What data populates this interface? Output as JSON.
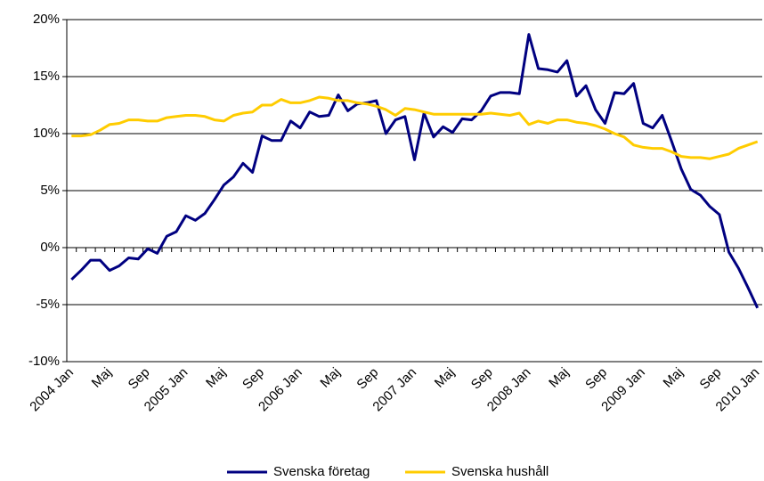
{
  "chart_data": {
    "type": "line",
    "categories": [
      "2004 Jan",
      null,
      null,
      null,
      "Maj",
      null,
      null,
      null,
      "Sep",
      null,
      null,
      null,
      "2005 Jan",
      null,
      null,
      null,
      "Maj",
      null,
      null,
      null,
      "Sep",
      null,
      null,
      null,
      "2006 Jan",
      null,
      null,
      null,
      "Maj",
      null,
      null,
      null,
      "Sep",
      null,
      null,
      null,
      "2007 Jan",
      null,
      null,
      null,
      "Maj",
      null,
      null,
      null,
      "Sep",
      null,
      null,
      null,
      "2008 Jan",
      null,
      null,
      null,
      "Maj",
      null,
      null,
      null,
      "Sep",
      null,
      null,
      null,
      "2009 Jan",
      null,
      null,
      null,
      "Maj",
      null,
      null,
      null,
      "Sep",
      null,
      null,
      null,
      "2010 Jan"
    ],
    "series": [
      {
        "name": "Svenska företag",
        "color": "#000080",
        "values": [
          -2.8,
          -2.0,
          -1.1,
          -1.1,
          -2.0,
          -1.6,
          -0.9,
          -1.0,
          -0.1,
          -0.5,
          1.0,
          1.4,
          2.8,
          2.4,
          3.0,
          4.2,
          5.5,
          6.2,
          7.4,
          6.6,
          9.8,
          9.4,
          9.4,
          11.1,
          10.5,
          11.9,
          11.5,
          11.6,
          13.4,
          12.0,
          12.6,
          12.7,
          12.9,
          10.0,
          11.2,
          11.5,
          7.7,
          11.8,
          9.7,
          10.6,
          10.1,
          11.3,
          11.2,
          12.0,
          13.3,
          13.6,
          13.6,
          13.5,
          18.7,
          15.7,
          15.6,
          15.4,
          16.4,
          13.3,
          14.2,
          12.1,
          10.9,
          13.6,
          13.5,
          14.4,
          10.9,
          10.5,
          11.6,
          9.3,
          6.9,
          5.1,
          4.6,
          3.6,
          2.9,
          -0.4,
          -1.8,
          -3.5,
          -5.3
        ]
      },
      {
        "name": "Svenska hushåll",
        "color": "#ffcc00",
        "values": [
          9.8,
          9.8,
          9.9,
          10.3,
          10.8,
          10.9,
          11.2,
          11.2,
          11.1,
          11.1,
          11.4,
          11.5,
          11.6,
          11.6,
          11.5,
          11.2,
          11.1,
          11.6,
          11.8,
          11.9,
          12.5,
          12.5,
          13.0,
          12.7,
          12.7,
          12.9,
          13.2,
          13.1,
          12.9,
          12.9,
          12.7,
          12.6,
          12.4,
          12.1,
          11.6,
          12.2,
          12.1,
          11.9,
          11.7,
          11.7,
          11.7,
          11.7,
          11.7,
          11.7,
          11.8,
          11.7,
          11.6,
          11.8,
          10.8,
          11.1,
          10.9,
          11.2,
          11.2,
          11.0,
          10.9,
          10.7,
          10.4,
          10.0,
          9.7,
          9.0,
          8.8,
          8.7,
          8.7,
          8.4,
          8.0,
          7.9,
          7.9,
          7.8,
          8.0,
          8.2,
          8.7,
          9.0,
          9.3
        ]
      }
    ],
    "ylim": [
      -10,
      20
    ],
    "yticks": [
      {
        "value": -10,
        "label": "-10%"
      },
      {
        "value": -5,
        "label": "-5%"
      },
      {
        "value": 0,
        "label": "0%"
      },
      {
        "value": 5,
        "label": "5%"
      },
      {
        "value": 10,
        "label": "10%"
      },
      {
        "value": 15,
        "label": "15%"
      },
      {
        "value": 20,
        "label": "20%"
      }
    ],
    "grid": true,
    "legend": "bottom"
  }
}
